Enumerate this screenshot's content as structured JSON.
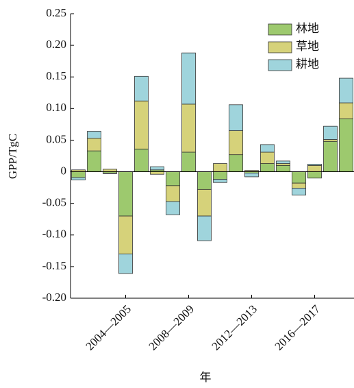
{
  "chart_data": {
    "type": "stacked_bar",
    "y_label": "GPP/TgC",
    "x_label": "年",
    "categories": [
      null,
      null,
      null,
      "2004—2005",
      null,
      null,
      null,
      "2008—2009",
      null,
      null,
      null,
      "2012—2013",
      null,
      null,
      null,
      "2016—2017",
      null,
      null
    ],
    "series": [
      {
        "name": "林地",
        "color": "#9dc96e",
        "values": [
          -0.009,
          0.033,
          -0.002,
          -0.07,
          0.036,
          0.003,
          -0.022,
          0.031,
          -0.028,
          -0.012,
          0.027,
          -0.002,
          0.013,
          0.01,
          -0.018,
          -0.01,
          0.048,
          0.084
        ]
      },
      {
        "name": "草地",
        "color": "#d6d27a",
        "values": [
          0.003,
          0.02,
          0.004,
          -0.06,
          0.076,
          -0.004,
          -0.025,
          0.076,
          -0.042,
          0.013,
          0.038,
          0.002,
          0.018,
          0.003,
          -0.008,
          0.01,
          0.003,
          0.025
        ]
      },
      {
        "name": "耕地",
        "color": "#9fd4dc",
        "values": [
          -0.004,
          0.011,
          -0.001,
          -0.031,
          0.039,
          0.005,
          -0.021,
          0.081,
          -0.039,
          -0.005,
          0.041,
          -0.006,
          0.012,
          0.004,
          -0.011,
          0.002,
          0.021,
          0.039
        ]
      }
    ],
    "ylim": [
      -0.2,
      0.25
    ],
    "yticks": [
      {
        "value": -0.2,
        "label": "-0.20"
      },
      {
        "value": -0.15,
        "label": "-0.15"
      },
      {
        "value": -0.1,
        "label": "-0.10"
      },
      {
        "value": -0.05,
        "label": "-0.05"
      },
      0,
      {
        "value": 0.05,
        "label": "0.05"
      },
      {
        "value": 0.1,
        "label": "0.10"
      },
      {
        "value": 0.15,
        "label": "0.15"
      },
      {
        "value": 0.2,
        "label": "0.20"
      },
      {
        "value": 0.25,
        "label": "0.25"
      }
    ],
    "legend": "upper right"
  }
}
